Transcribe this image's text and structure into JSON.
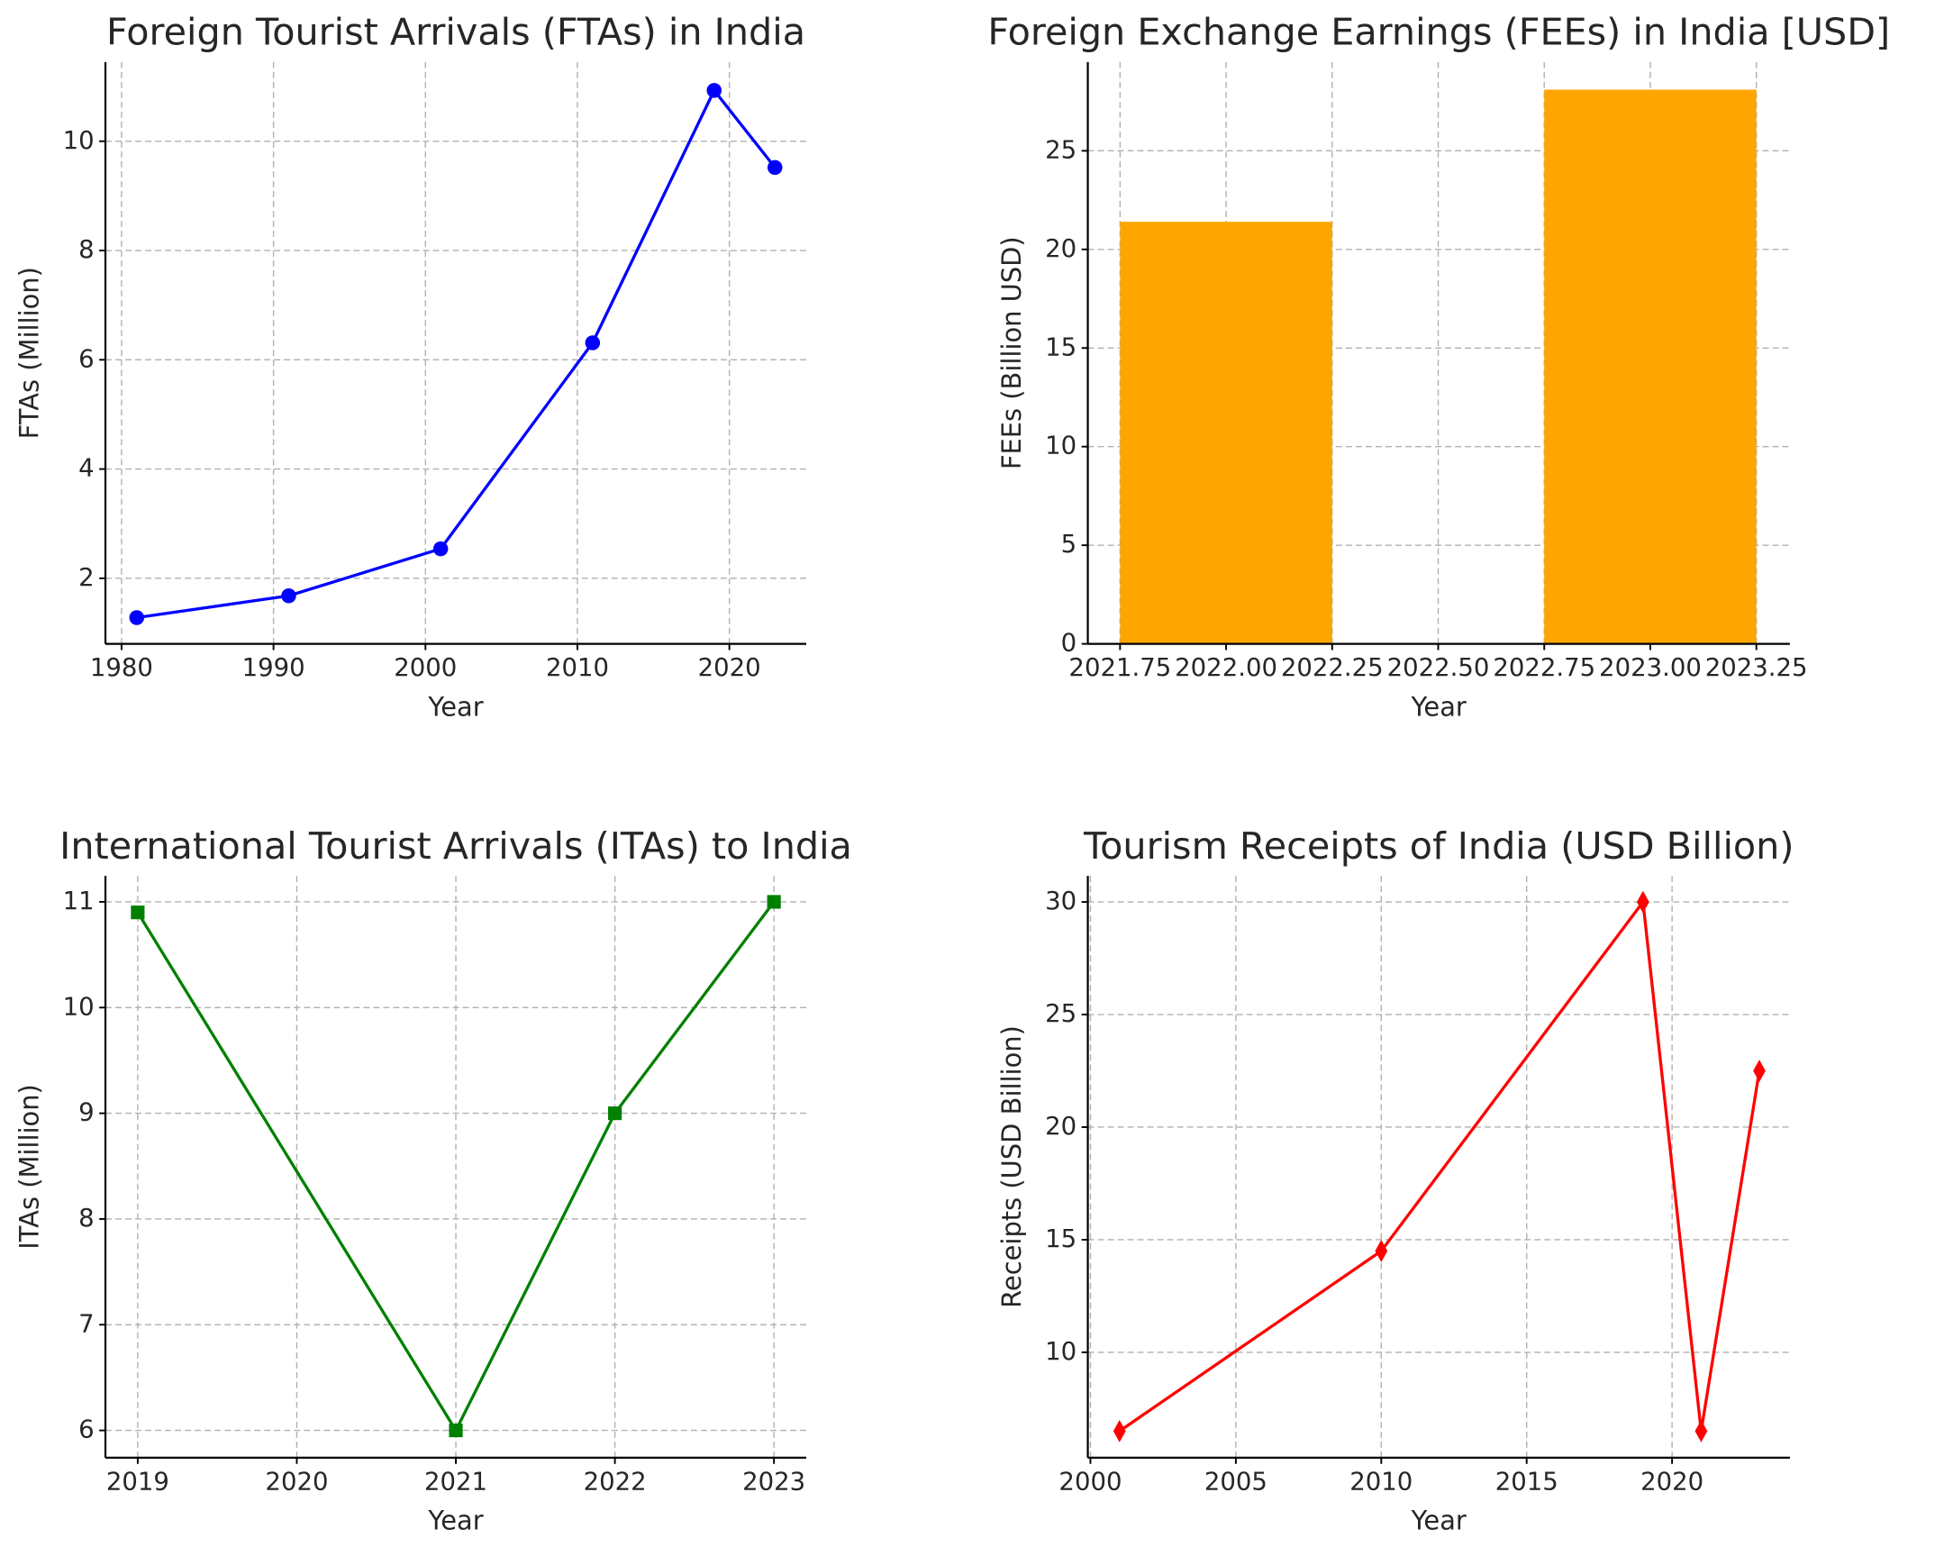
{
  "chart_data": [
    {
      "type": "line",
      "title": "Foreign Tourist Arrivals (FTAs) in India",
      "xlabel": "Year",
      "ylabel": "FTAs (Million)",
      "x": [
        1981,
        1991,
        2001,
        2011,
        2019,
        2023
      ],
      "values": [
        1.28,
        1.68,
        2.54,
        6.31,
        10.93,
        9.52
      ],
      "color": "#0000ff",
      "marker": "circle",
      "xlim": [
        1978.94,
        2025.06
      ],
      "xticks": [
        1980,
        1990,
        2000,
        2010,
        2020
      ],
      "ylim": [
        0.8,
        11.45
      ],
      "yticks": [
        2,
        4,
        6,
        8,
        10
      ],
      "grid": true
    },
    {
      "type": "bar",
      "title": "Foreign Exchange Earnings (FEEs) in India [USD]",
      "xlabel": "Year",
      "ylabel": "FEEs (Billion USD)",
      "x": [
        2022,
        2023
      ],
      "values": [
        21.4,
        28.1
      ],
      "bar_width": 0.5,
      "color": "#ffa500",
      "xlim": [
        2021.674,
        2023.329
      ],
      "xticks": [
        2021.75,
        {
          "value": 2022,
          "label": "2022.00"
        },
        2022.25,
        {
          "value": 2022.5,
          "label": "2022.50"
        },
        2022.75,
        {
          "value": 2023,
          "label": "2023.00"
        },
        2023.25
      ],
      "ylim": [
        0,
        29.5
      ],
      "yticks": [
        0,
        5,
        10,
        15,
        20,
        25
      ],
      "grid": true
    },
    {
      "type": "line",
      "title": "International Tourist Arrivals (ITAs) to India",
      "xlabel": "Year",
      "ylabel": "ITAs (Million)",
      "x": [
        2019,
        2021,
        2022,
        2023
      ],
      "values": [
        10.9,
        6.0,
        9.0,
        11.0
      ],
      "color": "#008000",
      "marker": "square",
      "xlim": [
        2018.797,
        2023.203
      ],
      "xticks": [
        2019,
        2020,
        2021,
        2022,
        2023
      ],
      "ylim": [
        5.742,
        11.246
      ],
      "yticks": [
        6,
        7,
        8,
        9,
        10,
        11
      ],
      "grid": true
    },
    {
      "type": "line",
      "title": "Tourism Receipts of India (USD Billion)",
      "xlabel": "Year",
      "ylabel": "Receipts (USD Billion)",
      "x": [
        2001,
        2010,
        2019,
        2021,
        2023
      ],
      "values": [
        6.5,
        14.5,
        30.0,
        6.5,
        22.5
      ],
      "color": "#ff0000",
      "marker": "diamond",
      "xlim": [
        1999.91,
        2024.05
      ],
      "xticks": [
        2000,
        2005,
        2010,
        2015,
        2020
      ],
      "ylim": [
        5.32,
        31.16
      ],
      "yticks": [
        10,
        15,
        20,
        25,
        30
      ],
      "grid": true
    }
  ]
}
